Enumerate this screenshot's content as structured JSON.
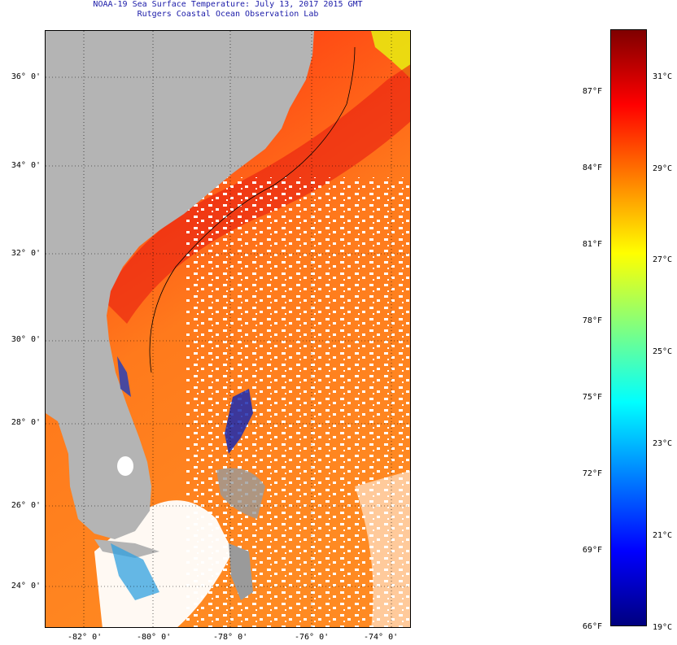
{
  "title": {
    "line1": "NOAA-19 Sea Surface Temperature:  July 13, 2017 2015 GMT",
    "line2": "Rutgers Coastal Ocean Observation Lab"
  },
  "map": {
    "lat_labels": [
      "36° 0'",
      "34° 0'",
      "32° 0'",
      "30° 0'",
      "28° 0'",
      "26° 0'",
      "24° 0'"
    ],
    "lon_labels": [
      "-82° 0'",
      "-80° 0'",
      "-78° 0'",
      "-76° 0'",
      "-74° 0'"
    ],
    "colors": {
      "land": "#b4b4b4",
      "ocean_warm": "#ff5a10",
      "ocean_hot": "#f02814",
      "ocean_mid": "#ff8c1e",
      "cloud": "#ffffff",
      "cool_patch": "#1a2ab0"
    }
  },
  "colorbar": {
    "fahrenheit_labels": [
      "87°F",
      "84°F",
      "81°F",
      "78°F",
      "75°F",
      "72°F",
      "69°F",
      "66°F"
    ],
    "celsius_labels": [
      "31°C",
      "29°C",
      "27°C",
      "25°C",
      "23°C",
      "21°C",
      "19°C"
    ],
    "gradient": [
      "#00007f",
      "#0000ff",
      "#0080ff",
      "#00ffff",
      "#80ff80",
      "#ffff00",
      "#ff8000",
      "#ff0000",
      "#7f0000"
    ]
  }
}
